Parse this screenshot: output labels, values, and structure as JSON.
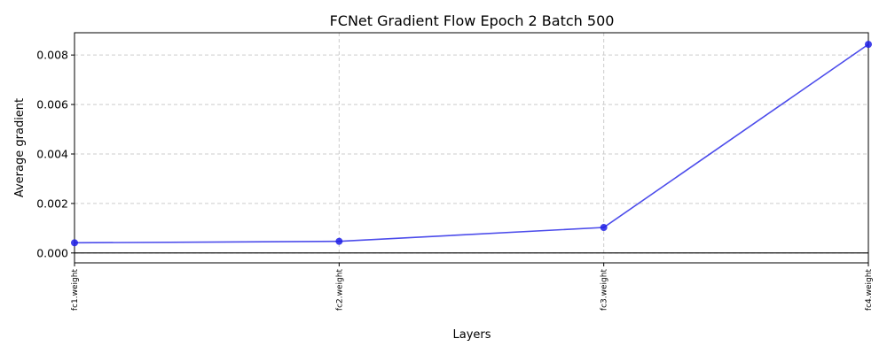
{
  "chart_data": {
    "type": "line",
    "title": "FCNet Gradient Flow Epoch 2 Batch 500",
    "xlabel": "Layers",
    "ylabel": "Average gradient",
    "categories": [
      "fc1.weight",
      "fc2.weight",
      "fc3.weight",
      "fc4.weight"
    ],
    "series": [
      {
        "values": [
          0.00041,
          0.00047,
          0.00103,
          0.00843
        ],
        "color": "#1f1fe6"
      }
    ],
    "ylim": [
      -0.0004,
      0.0089
    ],
    "yticks": [
      0.0,
      0.002,
      0.004,
      0.006,
      0.008
    ],
    "ytick_labels": [
      "0.000",
      "0.002",
      "0.004",
      "0.006",
      "0.008"
    ],
    "hline": 0,
    "grid": true
  }
}
